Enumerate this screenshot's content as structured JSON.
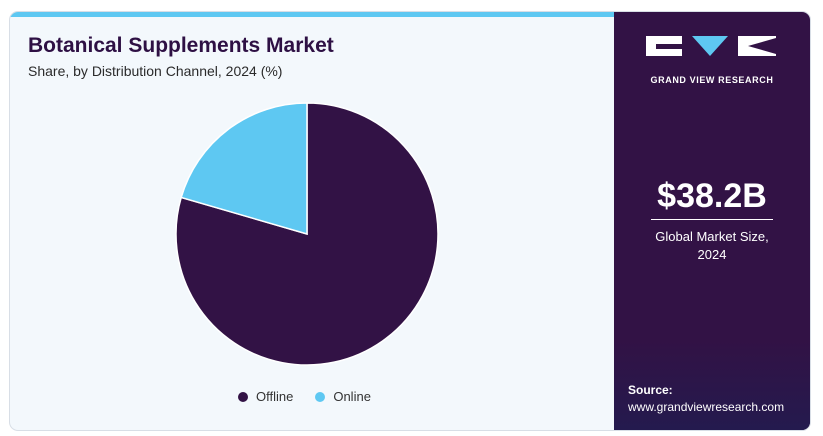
{
  "chart_data": {
    "type": "pie",
    "title": "Botanical Supplements Market",
    "subtitle": "Share, by Distribution Channel, 2024 (%)",
    "categories": [
      "Offline",
      "Online"
    ],
    "values": [
      79.5,
      20.5
    ],
    "colors": [
      "#321245",
      "#5ec8f2"
    ],
    "legend_position": "bottom"
  },
  "sidebar": {
    "brand": "GRAND VIEW RESEARCH",
    "market_value": "$38.2B",
    "market_label": "Global Market Size, 2024",
    "source_label": "Source:",
    "source_url": "www.grandviewresearch.com"
  }
}
